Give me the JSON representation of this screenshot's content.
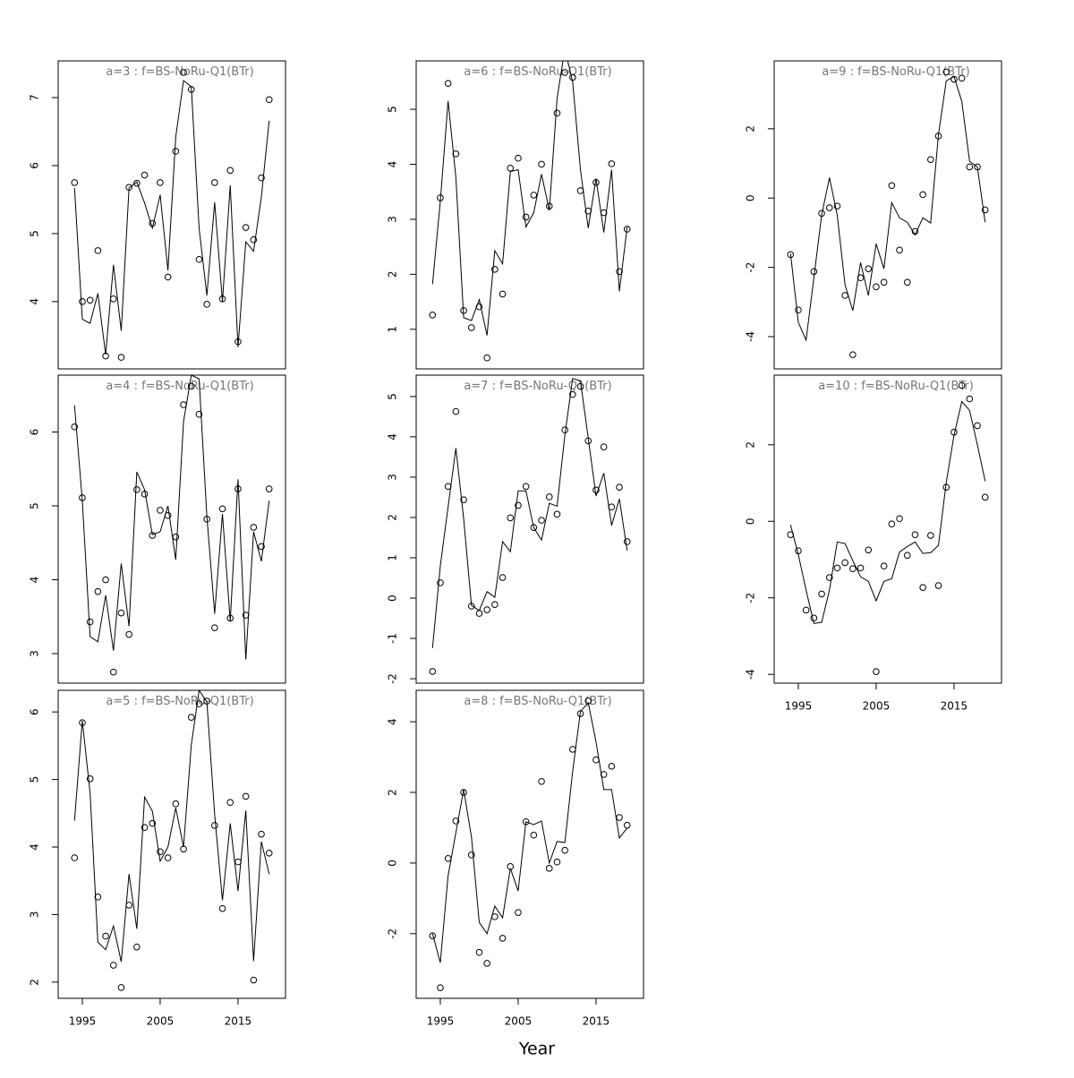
{
  "chart_data": [
    {
      "type": "line",
      "title": "a=3 : f=BS-NoRu-Q1(BTr)",
      "x": [
        1994,
        1995,
        1996,
        1997,
        1998,
        1999,
        2000,
        2001,
        2002,
        2003,
        2004,
        2005,
        2006,
        2007,
        2008,
        2009,
        2010,
        2011,
        2012,
        2013,
        2014,
        2015,
        2016,
        2017,
        2018,
        2019
      ],
      "xlim": [
        1991.9,
        2021.1
      ],
      "ylim": [
        3.01,
        7.54
      ],
      "yticks": [
        4,
        5,
        6,
        7
      ],
      "series": [
        {
          "style": "points",
          "color": "#000000",
          "values": [
            5.75,
            4.0,
            4.02,
            4.75,
            3.2,
            4.04,
            3.18,
            5.68,
            5.74,
            5.86,
            5.15,
            5.75,
            4.36,
            6.21,
            7.37,
            7.12,
            4.62,
            3.96,
            5.75,
            4.04,
            5.93,
            3.41,
            5.09,
            4.91,
            5.82,
            6.97
          ]
        },
        {
          "style": "line",
          "color": "#000000",
          "values": [
            5.67,
            3.74,
            3.68,
            4.12,
            3.22,
            4.54,
            3.57,
            5.67,
            5.76,
            5.45,
            5.08,
            5.57,
            4.46,
            6.42,
            7.25,
            7.16,
            5.08,
            4.09,
            5.46,
            4.0,
            5.71,
            3.33,
            4.88,
            4.74,
            5.54,
            6.66
          ]
        }
      ]
    },
    {
      "type": "line",
      "title": "a=4 : f=BS-NoRu-Q1(BTr)",
      "x": [
        1994,
        1995,
        1996,
        1997,
        1998,
        1999,
        2000,
        2001,
        2002,
        2003,
        2004,
        2005,
        2006,
        2007,
        2008,
        2009,
        2010,
        2011,
        2012,
        2013,
        2014,
        2015,
        2016,
        2017,
        2018,
        2019
      ],
      "xlim": [
        1991.9,
        2021.1
      ],
      "ylim": [
        2.6,
        6.77
      ],
      "yticks": [
        3,
        4,
        5,
        6
      ],
      "series": [
        {
          "style": "points",
          "color": "#000000",
          "values": [
            6.07,
            5.11,
            3.43,
            3.84,
            4.0,
            2.75,
            3.55,
            3.26,
            5.22,
            5.16,
            4.6,
            4.94,
            4.87,
            4.58,
            6.37,
            6.62,
            6.24,
            4.82,
            3.35,
            4.96,
            3.48,
            5.23,
            3.52,
            4.71,
            4.45,
            5.23
          ]
        },
        {
          "style": "line",
          "color": "#000000",
          "values": [
            6.36,
            5.07,
            3.23,
            3.16,
            3.79,
            3.04,
            4.22,
            3.37,
            5.46,
            5.22,
            4.61,
            4.65,
            5.0,
            4.27,
            6.14,
            6.77,
            6.72,
            4.86,
            3.54,
            4.89,
            3.44,
            5.36,
            2.92,
            4.65,
            4.25,
            5.07
          ]
        }
      ]
    },
    {
      "type": "line",
      "title": "a=5 : f=BS-NoRu-Q1(BTr)",
      "x": [
        1994,
        1995,
        1996,
        1997,
        1998,
        1999,
        2000,
        2001,
        2002,
        2003,
        2004,
        2005,
        2006,
        2007,
        2008,
        2009,
        2010,
        2011,
        2012,
        2013,
        2014,
        2015,
        2016,
        2017,
        2018,
        2019
      ],
      "xlim": [
        1991.9,
        2021.1
      ],
      "xticks": [
        1995,
        2005,
        2015
      ],
      "ylim": [
        1.76,
        6.32
      ],
      "yticks": [
        2,
        3,
        4,
        5,
        6
      ],
      "series": [
        {
          "style": "points",
          "color": "#000000",
          "values": [
            3.84,
            5.84,
            5.01,
            3.26,
            2.68,
            2.25,
            1.92,
            3.14,
            2.52,
            4.29,
            4.35,
            3.93,
            3.84,
            4.64,
            3.97,
            5.92,
            6.12,
            6.16,
            4.32,
            3.09,
            4.66,
            3.78,
            4.75,
            2.03,
            4.19,
            3.91
          ]
        },
        {
          "style": "line",
          "color": "#000000",
          "values": [
            4.39,
            5.87,
            4.8,
            2.59,
            2.48,
            2.83,
            2.3,
            3.6,
            2.79,
            4.74,
            4.53,
            3.79,
            4.0,
            4.58,
            4.0,
            5.51,
            6.32,
            6.15,
            4.48,
            3.21,
            4.35,
            3.35,
            4.54,
            2.31,
            4.08,
            3.6
          ]
        }
      ]
    },
    {
      "type": "line",
      "title": "a=6 : f=BS-NoRu-Q1(BTr)",
      "x": [
        1994,
        1995,
        1996,
        1997,
        1998,
        1999,
        2000,
        2001,
        2002,
        2003,
        2004,
        2005,
        2006,
        2007,
        2008,
        2009,
        2010,
        2011,
        2012,
        2013,
        2014,
        2015,
        2016,
        2017,
        2018,
        2019
      ],
      "xlim": [
        1991.9,
        2021.1
      ],
      "ylim": [
        0.28,
        5.88
      ],
      "yticks": [
        1,
        2,
        3,
        4,
        5
      ],
      "series": [
        {
          "style": "points",
          "color": "#000000",
          "values": [
            1.26,
            3.39,
            5.47,
            4.19,
            1.34,
            1.03,
            1.41,
            0.48,
            2.09,
            1.64,
            3.93,
            4.11,
            3.04,
            3.44,
            4.0,
            3.24,
            4.93,
            5.67,
            5.58,
            3.52,
            3.15,
            3.67,
            3.12,
            4.01,
            2.05,
            2.82
          ]
        },
        {
          "style": "line",
          "color": "#000000",
          "values": [
            1.82,
            3.33,
            5.15,
            3.76,
            1.21,
            1.16,
            1.54,
            0.89,
            2.43,
            2.19,
            3.87,
            3.9,
            2.86,
            3.12,
            3.82,
            3.16,
            5.2,
            6.1,
            5.5,
            3.9,
            2.84,
            3.74,
            2.76,
            3.9,
            1.69,
            2.86
          ]
        }
      ]
    },
    {
      "type": "line",
      "title": "a=7 : f=BS-NoRu-Q1(BTr)",
      "x": [
        1994,
        1995,
        1996,
        1997,
        1998,
        1999,
        2000,
        2001,
        2002,
        2003,
        2004,
        2005,
        2006,
        2007,
        2008,
        2009,
        2010,
        2011,
        2012,
        2013,
        2014,
        2015,
        2016,
        2017,
        2018,
        2019
      ],
      "xlim": [
        1991.9,
        2021.1
      ],
      "ylim": [
        -2.11,
        5.53
      ],
      "yticks": [
        -2,
        -1,
        0,
        1,
        2,
        3,
        4,
        5
      ],
      "series": [
        {
          "style": "points",
          "color": "#000000",
          "values": [
            -1.82,
            0.38,
            2.77,
            4.63,
            2.44,
            -0.2,
            -0.38,
            -0.29,
            -0.16,
            0.51,
            1.99,
            2.3,
            2.77,
            1.75,
            1.93,
            2.51,
            2.08,
            4.17,
            5.05,
            5.25,
            3.9,
            2.68,
            3.75,
            2.26,
            2.75,
            1.4
          ]
        },
        {
          "style": "line",
          "color": "#000000",
          "values": [
            -1.24,
            0.8,
            2.26,
            3.72,
            1.97,
            -0.18,
            -0.31,
            0.16,
            0.02,
            1.4,
            1.15,
            2.66,
            2.66,
            1.75,
            1.44,
            2.35,
            2.28,
            4.04,
            5.45,
            5.39,
            3.97,
            2.53,
            3.1,
            1.8,
            2.46,
            1.18
          ]
        }
      ]
    },
    {
      "type": "line",
      "title": "a=8 : f=BS-NoRu-Q1(BTr)",
      "x": [
        1994,
        1995,
        1996,
        1997,
        1998,
        1999,
        2000,
        2001,
        2002,
        2003,
        2004,
        2005,
        2006,
        2007,
        2008,
        2009,
        2010,
        2011,
        2012,
        2013,
        2014,
        2015,
        2016,
        2017,
        2018,
        2019
      ],
      "xlim": [
        1991.9,
        2021.1
      ],
      "xticks": [
        1995,
        2005,
        2015
      ],
      "ylim": [
        -3.83,
        4.89
      ],
      "yticks": [
        -2,
        0,
        2,
        4
      ],
      "series": [
        {
          "style": "points",
          "color": "#000000",
          "values": [
            -2.06,
            -3.53,
            0.13,
            1.19,
            2.0,
            0.23,
            -2.53,
            -2.84,
            -1.52,
            -2.13,
            -0.1,
            -1.4,
            1.17,
            0.79,
            2.31,
            -0.15,
            0.03,
            0.36,
            3.22,
            4.23,
            4.59,
            2.92,
            2.51,
            2.74,
            1.29,
            1.07
          ]
        },
        {
          "style": "line",
          "color": "#000000",
          "values": [
            -2.0,
            -2.82,
            -0.36,
            0.86,
            2.08,
            0.74,
            -1.68,
            -2.0,
            -1.22,
            -1.55,
            -0.15,
            -0.79,
            1.17,
            1.09,
            1.19,
            0.0,
            0.61,
            0.58,
            2.59,
            4.29,
            4.54,
            3.43,
            2.08,
            2.08,
            0.71,
            0.99
          ]
        }
      ]
    },
    {
      "type": "line",
      "title": "a=9 : f=BS-NoRu-Q1(BTr)",
      "x": [
        1994,
        1995,
        1996,
        1997,
        1998,
        1999,
        2000,
        2001,
        2002,
        2003,
        2004,
        2005,
        2006,
        2007,
        2008,
        2009,
        2010,
        2011,
        2012,
        2013,
        2014,
        2015,
        2016,
        2017,
        2018,
        2019
      ],
      "xlim": [
        1991.9,
        2021.1
      ],
      "ylim": [
        -4.93,
        3.96
      ],
      "yticks": [
        -4,
        -2,
        0,
        2
      ],
      "series": [
        {
          "style": "points",
          "color": "#000000",
          "values": [
            -1.63,
            -3.23,
            null,
            -2.12,
            -0.44,
            -0.28,
            -0.23,
            -2.81,
            -4.52,
            -2.3,
            -2.04,
            -2.56,
            -2.43,
            0.36,
            -1.5,
            -2.43,
            -0.96,
            0.1,
            1.11,
            1.79,
            3.64,
            3.43,
            3.46,
            0.9,
            0.9,
            -0.34
          ]
        },
        {
          "style": "line",
          "color": "#000000",
          "values": [
            -1.6,
            -3.59,
            -4.1,
            -2.3,
            -0.49,
            0.59,
            -0.49,
            -2.5,
            -3.25,
            -1.86,
            -2.81,
            -1.32,
            -2.04,
            -0.13,
            -0.57,
            -0.7,
            -1.06,
            -0.57,
            -0.72,
            1.83,
            3.38,
            3.51,
            2.79,
            1.06,
            0.9,
            -0.7
          ]
        }
      ]
    },
    {
      "type": "line",
      "title": "a=10 : f=BS-NoRu-Q1(BTr)",
      "x": [
        1994,
        1995,
        1996,
        1997,
        1998,
        1999,
        2000,
        2001,
        2002,
        2003,
        2004,
        2005,
        2006,
        2007,
        2008,
        2009,
        2010,
        2011,
        2012,
        2013,
        2014,
        2015,
        2016,
        2017,
        2018,
        2019
      ],
      "xlim": [
        1991.9,
        2021.1
      ],
      "xticks": [
        1995,
        2005,
        2015
      ],
      "ylim": [
        -4.23,
        3.82
      ],
      "yticks": [
        -4,
        -2,
        0,
        2
      ],
      "series": [
        {
          "style": "points",
          "color": "#000000",
          "values": [
            -0.35,
            -0.77,
            -2.32,
            -2.53,
            -1.9,
            -1.47,
            -1.22,
            -1.08,
            -1.24,
            -1.22,
            -0.75,
            -3.93,
            -1.17,
            -0.07,
            0.07,
            -0.89,
            -0.35,
            -1.73,
            -0.37,
            -1.68,
            0.89,
            2.33,
            3.55,
            3.2,
            2.5,
            0.63
          ]
        },
        {
          "style": "line",
          "color": "#000000",
          "values": [
            -0.09,
            -0.87,
            -1.8,
            -2.67,
            -2.64,
            -1.8,
            -0.54,
            -0.58,
            -1.03,
            -1.45,
            -1.57,
            -2.08,
            -1.57,
            -1.5,
            -0.8,
            -0.66,
            -0.54,
            -0.84,
            -0.82,
            -0.63,
            1.01,
            2.25,
            3.13,
            2.9,
            2.0,
            1.05
          ]
        }
      ]
    }
  ],
  "xlabel": "Year"
}
